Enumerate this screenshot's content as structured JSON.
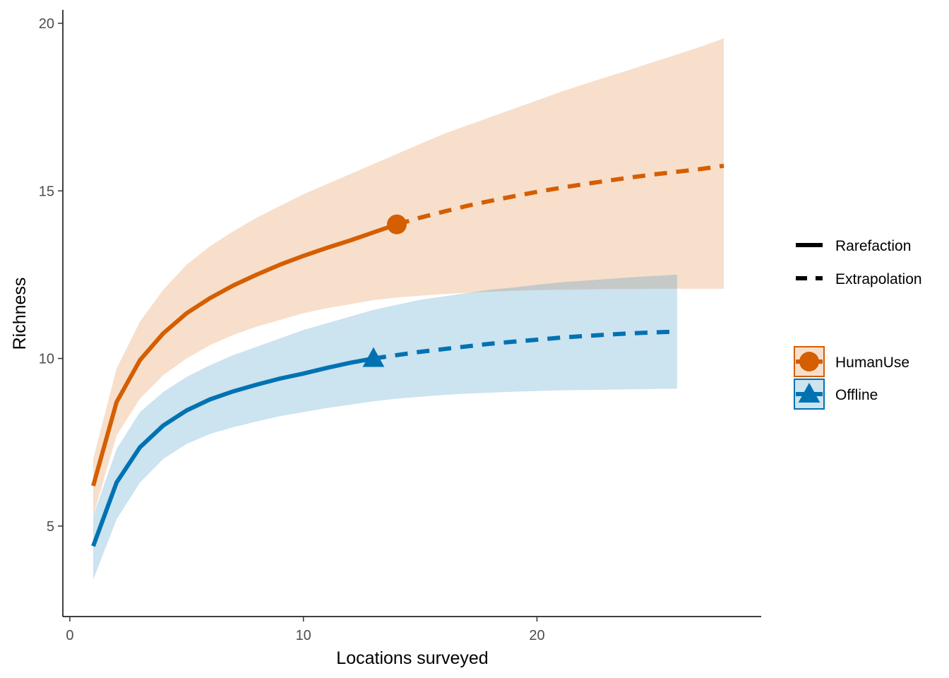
{
  "chart_data": {
    "type": "line",
    "xlabel": "Locations surveyed",
    "ylabel": "Richness",
    "xlim": [
      -0.3,
      29.6
    ],
    "ylim": [
      2.3,
      20.4
    ],
    "x_ticks": [
      0,
      10,
      20
    ],
    "y_ticks": [
      5,
      10,
      15,
      20
    ],
    "x_tick_labels": [
      "0",
      "10",
      "20"
    ],
    "y_tick_labels": [
      "5",
      "10",
      "15",
      "20"
    ],
    "grid": false,
    "legend_position": "right",
    "method_legend": [
      {
        "label": "Rarefaction",
        "linestyle": "solid"
      },
      {
        "label": "Extrapolation",
        "linestyle": "dashed"
      }
    ],
    "series": [
      {
        "name": "HumanUse",
        "color": "#D55E00",
        "marker": "circle",
        "reference": {
          "x": 14,
          "y": 14.0
        },
        "rarefaction": {
          "x": [
            1,
            2,
            3,
            4,
            5,
            6,
            7,
            8,
            9,
            10,
            11,
            12,
            13,
            14
          ],
          "y": [
            6.2,
            8.7,
            9.95,
            10.75,
            11.35,
            11.8,
            12.18,
            12.5,
            12.8,
            13.06,
            13.3,
            13.52,
            13.76,
            14.0
          ]
        },
        "extrapolation": {
          "x": [
            14,
            15,
            16,
            17,
            18,
            19,
            20,
            21,
            22,
            23,
            24,
            25,
            26,
            27,
            28
          ],
          "y": [
            14.0,
            14.2,
            14.38,
            14.55,
            14.7,
            14.84,
            14.97,
            15.09,
            15.2,
            15.3,
            15.4,
            15.49,
            15.57,
            15.65,
            15.75
          ]
        },
        "ci_lower": [
          5.3,
          7.7,
          8.8,
          9.5,
          10.0,
          10.4,
          10.7,
          10.95,
          11.15,
          11.35,
          11.5,
          11.62,
          11.74,
          11.82,
          11.87,
          11.92,
          11.96,
          11.99,
          12.02,
          12.04,
          12.05,
          12.06,
          12.07,
          12.07,
          12.08,
          12.08,
          12.08,
          12.08
        ],
        "ci_upper": [
          7.0,
          9.7,
          11.1,
          12.05,
          12.8,
          13.35,
          13.8,
          14.2,
          14.55,
          14.9,
          15.2,
          15.5,
          15.8,
          16.1,
          16.4,
          16.7,
          16.95,
          17.2,
          17.45,
          17.7,
          17.95,
          18.18,
          18.4,
          18.62,
          18.85,
          19.07,
          19.3,
          19.55
        ]
      },
      {
        "name": "Offline",
        "color": "#0072B2",
        "marker": "triangle",
        "reference": {
          "x": 13,
          "y": 10.0
        },
        "rarefaction": {
          "x": [
            1,
            2,
            3,
            4,
            5,
            6,
            7,
            8,
            9,
            10,
            11,
            12,
            13
          ],
          "y": [
            4.4,
            6.3,
            7.35,
            8.0,
            8.45,
            8.78,
            9.02,
            9.22,
            9.4,
            9.55,
            9.72,
            9.87,
            10.0
          ]
        },
        "extrapolation": {
          "x": [
            13,
            14,
            15,
            16,
            17,
            18,
            19,
            20,
            21,
            22,
            23,
            24,
            25,
            26
          ],
          "y": [
            10.0,
            10.1,
            10.2,
            10.28,
            10.36,
            10.44,
            10.5,
            10.56,
            10.62,
            10.67,
            10.71,
            10.75,
            10.78,
            10.8
          ]
        },
        "ci_lower": [
          3.4,
          5.2,
          6.3,
          7.0,
          7.45,
          7.75,
          7.95,
          8.12,
          8.28,
          8.4,
          8.52,
          8.62,
          8.72,
          8.8,
          8.86,
          8.91,
          8.95,
          8.98,
          9.01,
          9.03,
          9.05,
          9.06,
          9.07,
          9.08,
          9.09,
          9.1
        ],
        "ci_upper": [
          5.3,
          7.3,
          8.4,
          9.0,
          9.45,
          9.8,
          10.1,
          10.35,
          10.6,
          10.85,
          11.05,
          11.25,
          11.45,
          11.6,
          11.75,
          11.85,
          11.95,
          12.05,
          12.12,
          12.2,
          12.27,
          12.32,
          12.37,
          12.42,
          12.46,
          12.5
        ]
      }
    ]
  }
}
